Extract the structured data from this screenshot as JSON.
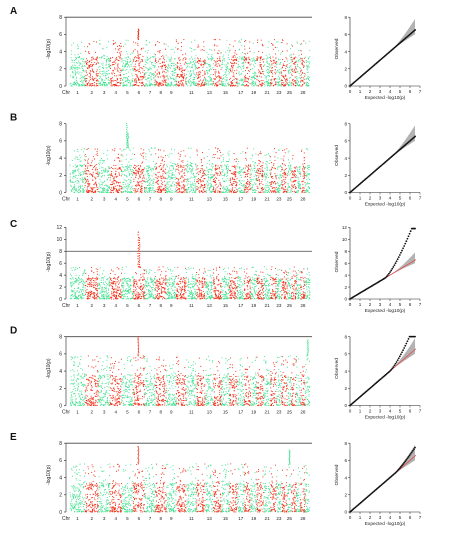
{
  "chart_data": [
    {
      "panel": "A",
      "type": "scatter",
      "manhattan": {
        "ylabel": "-log10(p)",
        "xlabel": "Chr",
        "yticks": [
          0,
          2,
          4,
          6,
          8
        ],
        "ylim": [
          0,
          8.6
        ],
        "threshold": 8,
        "chromosomes": [
          "1",
          "2",
          "3",
          "4",
          "5",
          "6",
          "7",
          "8",
          "9",
          "10",
          "11",
          "12",
          "13",
          "14",
          "15",
          "16",
          "17",
          "18",
          "19",
          "20",
          "21",
          "22",
          "23",
          "24",
          "25",
          "26",
          "27",
          "28",
          "29"
        ],
        "chromosome_labels": [
          "1",
          "2",
          "3",
          "4",
          "5",
          "6",
          "7",
          "8",
          "9",
          "11",
          "13",
          "15",
          "17",
          "19",
          "21",
          "23",
          "25",
          "28"
        ],
        "base_level": 3.4,
        "typical_max": 5.4,
        "peaks": [
          {
            "chr": "6",
            "value": 6.6
          }
        ],
        "series": [
          {
            "color": "#40e090"
          },
          {
            "color": "#f02a10"
          }
        ]
      },
      "qq": {
        "xlabel": "Expected  -log10(p)",
        "ylabel": "Observed",
        "xticks": [
          0,
          1,
          2,
          3,
          4,
          5,
          6,
          7
        ],
        "yticks": [
          0,
          2,
          4,
          6,
          8
        ],
        "xlim": [
          0,
          7
        ],
        "ylim": [
          0,
          8.6
        ],
        "deviation": "none"
      }
    },
    {
      "panel": "B",
      "type": "scatter",
      "manhattan": {
        "ylabel": "-log10(p)",
        "xlabel": "Chr",
        "yticks": [
          0,
          2,
          4,
          6,
          8
        ],
        "ylim": [
          0,
          8.6
        ],
        "threshold": null,
        "chromosomes": [
          "1",
          "2",
          "3",
          "4",
          "5",
          "6",
          "7",
          "8",
          "9",
          "10",
          "11",
          "12",
          "13",
          "14",
          "15",
          "16",
          "17",
          "18",
          "19",
          "20",
          "21",
          "22",
          "23",
          "24",
          "25",
          "26",
          "27",
          "28",
          "29"
        ],
        "chromosome_labels": [
          "1",
          "2",
          "3",
          "4",
          "5",
          "6",
          "7",
          "8",
          "9",
          "11",
          "13",
          "15",
          "17",
          "19",
          "21",
          "23",
          "25",
          "28"
        ],
        "base_level": 3.2,
        "typical_max": 5.2,
        "peaks": [
          {
            "chr": "5",
            "value": 8.0
          },
          {
            "chr": "5",
            "value": 6.9
          }
        ],
        "series": [
          {
            "color": "#40e090"
          },
          {
            "color": "#f02a10"
          }
        ]
      },
      "qq": {
        "xlabel": "Expected  -log10(p)",
        "ylabel": "Observed",
        "xticks": [
          0,
          1,
          2,
          3,
          4,
          5,
          6,
          7
        ],
        "yticks": [
          0,
          2,
          4,
          6,
          8
        ],
        "xlim": [
          0,
          7
        ],
        "ylim": [
          0,
          8.6
        ],
        "deviation": "none"
      }
    },
    {
      "panel": "C",
      "type": "scatter",
      "manhattan": {
        "ylabel": "-log10(p)",
        "xlabel": "Chr",
        "yticks": [
          0,
          2,
          4,
          6,
          8,
          10,
          12
        ],
        "ylim": [
          0,
          12.4
        ],
        "threshold": 8,
        "chromosomes": [
          "1",
          "2",
          "3",
          "4",
          "5",
          "6",
          "7",
          "8",
          "9",
          "10",
          "11",
          "12",
          "13",
          "14",
          "15",
          "16",
          "17",
          "18",
          "19",
          "20",
          "21",
          "22",
          "23",
          "24",
          "25",
          "26",
          "27",
          "28",
          "29"
        ],
        "chromosome_labels": [
          "1",
          "2",
          "3",
          "4",
          "5",
          "6",
          "7",
          "8",
          "9",
          "11",
          "13",
          "15",
          "17",
          "19",
          "21",
          "23",
          "25",
          "28"
        ],
        "base_level": 3.6,
        "typical_max": 5.4,
        "peaks": [
          {
            "chr": "6",
            "value": 11.2
          },
          {
            "chr": "6",
            "value": 10.2
          }
        ],
        "series": [
          {
            "color": "#40e090"
          },
          {
            "color": "#f02a10"
          }
        ]
      },
      "qq": {
        "xlabel": "Expected  -log10(p)",
        "ylabel": "Observed",
        "xticks": [
          0,
          1,
          2,
          3,
          4,
          5,
          6,
          7
        ],
        "yticks": [
          0,
          2,
          4,
          6,
          8,
          10,
          12
        ],
        "xlim": [
          0,
          7
        ],
        "ylim": [
          0,
          12.4
        ],
        "deviation": "strong"
      }
    },
    {
      "panel": "D",
      "type": "scatter",
      "manhattan": {
        "ylabel": "-log10(p)",
        "xlabel": "Chr",
        "yticks": [
          0,
          2,
          4,
          6,
          8
        ],
        "ylim": [
          0,
          8.6
        ],
        "threshold": 8,
        "chromosomes": [
          "1",
          "2",
          "3",
          "4",
          "5",
          "6",
          "7",
          "8",
          "9",
          "10",
          "11",
          "12",
          "13",
          "14",
          "15",
          "16",
          "17",
          "18",
          "19",
          "20",
          "21",
          "22",
          "23",
          "24",
          "25",
          "26",
          "27",
          "28",
          "29"
        ],
        "chromosome_labels": [
          "1",
          "2",
          "3",
          "4",
          "5",
          "6",
          "7",
          "8",
          "9",
          "11",
          "13",
          "15",
          "17",
          "19",
          "21",
          "23",
          "25",
          "28"
        ],
        "base_level": 3.6,
        "typical_max": 5.8,
        "peaks": [
          {
            "chr": "6",
            "value": 8.0
          },
          {
            "chr": "29",
            "value": 7.6
          }
        ],
        "series": [
          {
            "color": "#40e090"
          },
          {
            "color": "#f02a10"
          }
        ]
      },
      "qq": {
        "xlabel": "Expected  -log10(p)",
        "ylabel": "Observed",
        "xticks": [
          0,
          1,
          2,
          3,
          4,
          5,
          6,
          7
        ],
        "yticks": [
          0,
          2,
          4,
          6,
          8
        ],
        "xlim": [
          0,
          7
        ],
        "ylim": [
          0,
          8.6
        ],
        "deviation": "moderate"
      }
    },
    {
      "panel": "E",
      "type": "scatter",
      "manhattan": {
        "ylabel": "-log10(p)",
        "xlabel": "Chr",
        "yticks": [
          0,
          2,
          4,
          6,
          8
        ],
        "ylim": [
          0,
          8.6
        ],
        "threshold": 8,
        "chromosomes": [
          "1",
          "2",
          "3",
          "4",
          "5",
          "6",
          "7",
          "8",
          "9",
          "10",
          "11",
          "12",
          "13",
          "14",
          "15",
          "16",
          "17",
          "18",
          "19",
          "20",
          "21",
          "22",
          "23",
          "24",
          "25",
          "26",
          "27",
          "28",
          "29"
        ],
        "chromosome_labels": [
          "1",
          "2",
          "3",
          "4",
          "5",
          "6",
          "7",
          "8",
          "9",
          "11",
          "13",
          "15",
          "17",
          "19",
          "21",
          "23",
          "25",
          "28"
        ],
        "base_level": 3.4,
        "typical_max": 5.6,
        "peaks": [
          {
            "chr": "6",
            "value": 7.6
          },
          {
            "chr": "25",
            "value": 7.2
          }
        ],
        "series": [
          {
            "color": "#40e090"
          },
          {
            "color": "#f02a10"
          }
        ]
      },
      "qq": {
        "xlabel": "Expected  -log10(p)",
        "ylabel": "Observed",
        "xticks": [
          0,
          1,
          2,
          3,
          4,
          5,
          6,
          7
        ],
        "yticks": [
          0,
          2,
          4,
          6,
          8
        ],
        "xlim": [
          0,
          7
        ],
        "ylim": [
          0,
          8.6
        ],
        "deviation": "slight"
      }
    }
  ],
  "colors": {
    "green": "#40e090",
    "red": "#f02a10",
    "threshold": "#444444",
    "qq_points": "#111111",
    "qq_band": "#9a9a9a",
    "qq_expected": "#e05050"
  }
}
